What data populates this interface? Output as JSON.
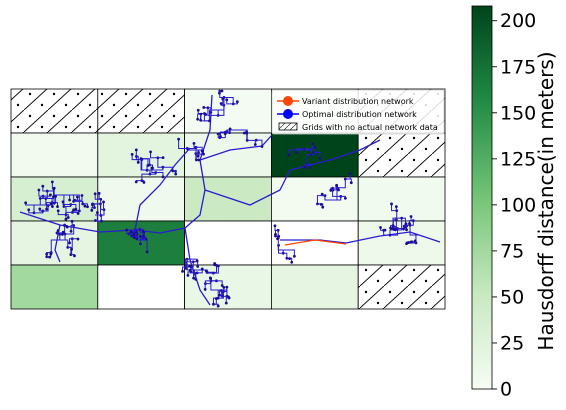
{
  "chart_data": {
    "type": "heatmap",
    "title": "",
    "grid": {
      "rows": 5,
      "cols": 5
    },
    "cells": [
      [
        null,
        null,
        3,
        5,
        null
      ],
      [
        5,
        22,
        12,
        208,
        null
      ],
      [
        35,
        8,
        48,
        4,
        6
      ],
      [
        20,
        165,
        0,
        0,
        10
      ],
      [
        75,
        0,
        15,
        20,
        null
      ]
    ],
    "missing_label": "Grids with no actual network data",
    "colorbar": {
      "label": "Hausdorff distance(in meters)",
      "range": [
        0,
        208
      ],
      "ticks": [
        0,
        25,
        50,
        75,
        100,
        125,
        150,
        175,
        200
      ],
      "tick_labels": [
        "0",
        "25",
        "50",
        "75",
        "100",
        "125",
        "150",
        "175",
        "200"
      ],
      "colormap": "Greens"
    },
    "legend": {
      "placement": "top-right",
      "entries": [
        {
          "label": "Variant distribution network",
          "color": "#ff4500",
          "marker": "circle"
        },
        {
          "label": "Optimal distribution network",
          "color": "#0000ff",
          "marker": "circle"
        },
        {
          "label": "Grids with no actual network data",
          "color": "#000000",
          "marker": "hatched-box"
        }
      ]
    },
    "colors": {
      "optimal_network": "#2a1bd0",
      "variant_network": "#ff4500",
      "node": "#1a0d8c"
    }
  }
}
